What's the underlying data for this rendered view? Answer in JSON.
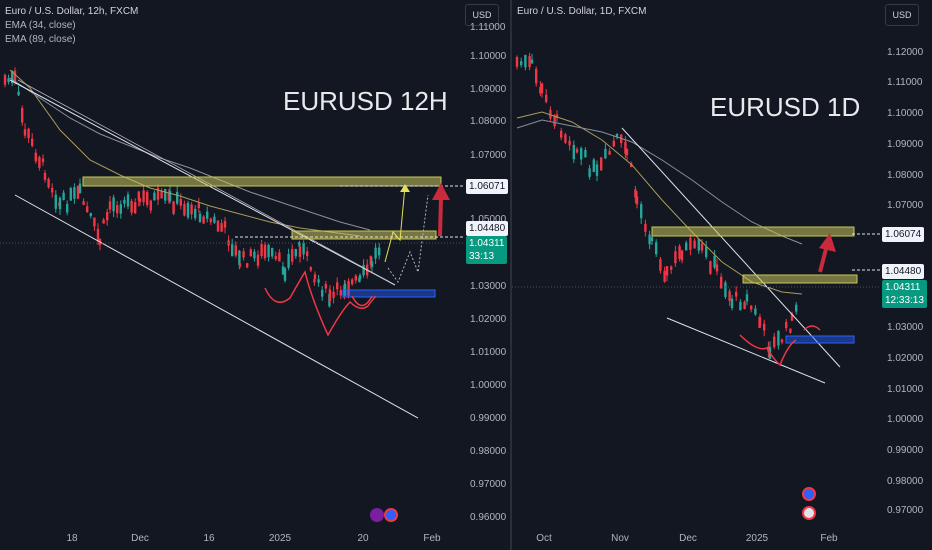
{
  "theme": {
    "background": "#131722",
    "up_color": "#26a69a",
    "down_color": "#f23645",
    "zone_color": "#c9c45a",
    "support_color": "#2962ff",
    "ema_fast": "#a89b5c",
    "ema_slow": "#8c8f98",
    "arrow_color": "#c92a3c",
    "path_color": "#e5e059"
  },
  "left_chart": {
    "symbol": "Euro / U.S. Dollar, 12h, FXCM",
    "indicators": [
      "EMA (34, close)",
      "EMA (89, close)"
    ],
    "currency_button": "USD",
    "big_label": "EURUSD 12H",
    "price_axis": [
      "1.11000",
      "1.10000",
      "1.09000",
      "1.08000",
      "1.07000",
      "1.05000",
      "1.03000",
      "1.02000",
      "1.01000",
      "1.00000",
      "0.99000",
      "0.98000",
      "0.97000",
      "0.96000"
    ],
    "time_axis": [
      "18",
      "Dec",
      "16",
      "2025",
      "20",
      "Feb"
    ],
    "price_tags": {
      "upper_level": "1.06071",
      "lower_level": "1.04480",
      "current_price": "1.04311",
      "countdown": "33:13"
    }
  },
  "right_chart": {
    "symbol": "Euro / U.S. Dollar, 1D, FXCM",
    "currency_button": "USD",
    "big_label": "EURUSD 1D",
    "price_axis": [
      "1.12000",
      "1.11000",
      "1.10000",
      "1.09000",
      "1.08000",
      "1.07000",
      "1.03000",
      "1.02000",
      "1.01000",
      "1.00000",
      "0.99000",
      "0.98000",
      "0.97000"
    ],
    "time_axis": [
      "Oct",
      "Nov",
      "Dec",
      "2025",
      "Feb"
    ],
    "price_tags": {
      "upper_level": "1.06074",
      "lower_level": "1.04480",
      "current_price": "1.04311",
      "countdown": "12:33:13"
    }
  }
}
